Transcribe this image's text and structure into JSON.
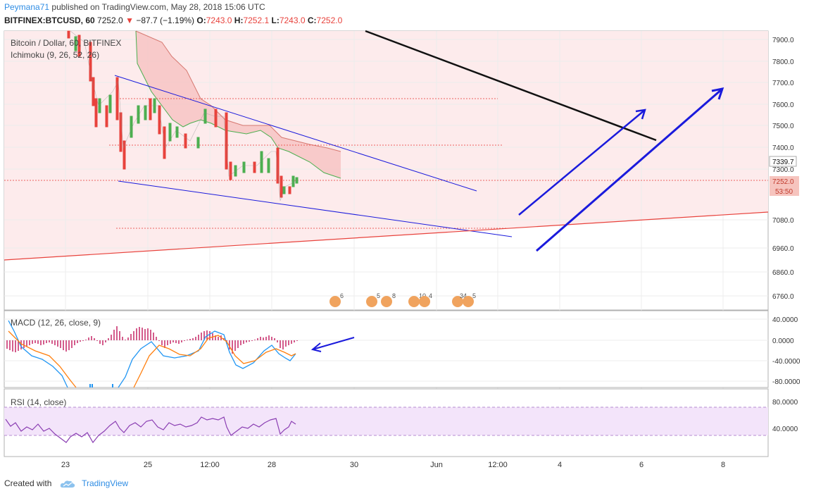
{
  "header": {
    "author": "Peymana71",
    "published_text": "published on TradingView.com, May 28, 2018 15:06 UTC",
    "symbol_line": "BITFINEX:BTCUSD, 60",
    "last_price": "7252.0",
    "change": "−87.7 (−1.19%)",
    "o_label": "O:",
    "o_value": "7243.0",
    "h_label": "H:",
    "h_value": "7252.1",
    "l_label": "L:",
    "l_value": "7243.0",
    "c_label": "C:",
    "c_value": "7252.0"
  },
  "main_pane": {
    "title": "Bitcoin / Dollar, 60, BITFINEX",
    "indicator": "Ichimoku (9, 26, 52, 26)",
    "price_ticks": [
      "7900.0",
      "7800.0",
      "7700.0",
      "7600.0",
      "7500.0",
      "7400.0",
      "7300.0",
      "7080.0",
      "6960.0",
      "6860.0",
      "6760.0"
    ],
    "price_tag_blue": "7339.7",
    "price_tag_last": "7252.0",
    "countdown": "53:50",
    "event_badges": [
      "6",
      "5",
      "8",
      "10",
      "4",
      "34",
      "5"
    ]
  },
  "macd_pane": {
    "title": "MACD (12, 26, close, 9)",
    "ticks": [
      "40.0000",
      "0.0000",
      "-40.0000",
      "-80.0000"
    ]
  },
  "rsi_pane": {
    "title": "RSI (14, close)",
    "ticks": [
      "80.0000",
      "40.0000"
    ]
  },
  "time_axis": {
    "labels": [
      "23",
      "25",
      "12:00",
      "28",
      "30",
      "Jun",
      "12:00",
      "4",
      "6",
      "8"
    ]
  },
  "footer": {
    "created_with": "Created with",
    "brand": "TradingView"
  },
  "colors": {
    "up": "#4caf50",
    "down": "#e8423c",
    "cloud": "#f7c4c4",
    "trend_blue": "#1a1adc",
    "macd_line": "#2196f3",
    "signal_line": "#ff7f0e",
    "rsi_line": "#8b3fb3"
  }
}
